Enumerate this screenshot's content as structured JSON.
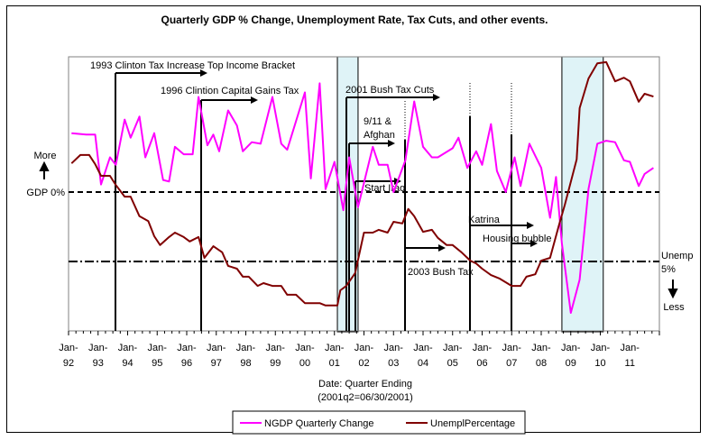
{
  "chart_data": {
    "type": "line",
    "title": "Quarterly GDP % Change, Unemployment Rate, Tax Cuts, and other events.",
    "xlabel": "Date: Quarter Ending",
    "xlabel_note": "(2001q2=06/30/2001)",
    "ylabel": "",
    "xlim": [
      1992,
      2012
    ],
    "gdp_ylim": [
      -9,
      9.2
    ],
    "unemp_ylim": [
      3.3,
      10.2
    ],
    "x_tick_labels": [
      [
        "Jan-",
        "92"
      ],
      [
        "Jan-",
        "93"
      ],
      [
        "Jan-",
        "94"
      ],
      [
        "Jan-",
        "95"
      ],
      [
        "Jan-",
        "96"
      ],
      [
        "Jan-",
        "97"
      ],
      [
        "Jan-",
        "98"
      ],
      [
        "Jan-",
        "99"
      ],
      [
        "Jan-",
        "00"
      ],
      [
        "Jan-",
        "01"
      ],
      [
        "Jan-",
        "02"
      ],
      [
        "Jan-",
        "03"
      ],
      [
        "Jan-",
        "04"
      ],
      [
        "Jan-",
        "05"
      ],
      [
        "Jan-",
        "06"
      ],
      [
        "Jan-",
        "07"
      ],
      [
        "Jan-",
        "08"
      ],
      [
        "Jan-",
        "09"
      ],
      [
        "Jan-",
        "10"
      ],
      [
        "Jan-",
        "11"
      ]
    ],
    "legend": {
      "placement": "bottom"
    },
    "series": [
      {
        "name": "NGDP Quarterly Change",
        "color": "#ff00ff",
        "axis": "gdp",
        "points": [
          [
            1992.1,
            3.9
          ],
          [
            1992.6,
            3.8
          ],
          [
            1992.9,
            3.8
          ],
          [
            1993.1,
            0.5
          ],
          [
            1993.4,
            2.3
          ],
          [
            1993.6,
            1.8
          ],
          [
            1993.9,
            4.8
          ],
          [
            1994.1,
            3.6
          ],
          [
            1994.4,
            5.0
          ],
          [
            1994.6,
            2.3
          ],
          [
            1994.9,
            3.9
          ],
          [
            1995.2,
            0.8
          ],
          [
            1995.4,
            0.7
          ],
          [
            1995.6,
            3.0
          ],
          [
            1995.9,
            2.5
          ],
          [
            1996.2,
            2.5
          ],
          [
            1996.4,
            6.3
          ],
          [
            1996.7,
            3.1
          ],
          [
            1996.9,
            3.8
          ],
          [
            1997.1,
            2.7
          ],
          [
            1997.4,
            5.4
          ],
          [
            1997.7,
            4.4
          ],
          [
            1997.9,
            2.7
          ],
          [
            1998.2,
            3.3
          ],
          [
            1998.5,
            3.2
          ],
          [
            1998.9,
            6.3
          ],
          [
            1999.2,
            3.2
          ],
          [
            1999.4,
            2.8
          ],
          [
            2000.0,
            6.6
          ],
          [
            2000.2,
            0.9
          ],
          [
            2000.5,
            7.2
          ],
          [
            2000.7,
            0.2
          ],
          [
            2001.0,
            2.0
          ],
          [
            2001.3,
            -1.2
          ],
          [
            2001.5,
            2.3
          ],
          [
            2001.8,
            -1.0
          ],
          [
            2002.3,
            3.0
          ],
          [
            2002.5,
            1.8
          ],
          [
            2002.8,
            1.8
          ],
          [
            2003.0,
            0.0
          ],
          [
            2003.4,
            2.1
          ],
          [
            2003.7,
            6.0
          ],
          [
            2004.0,
            3.0
          ],
          [
            2004.3,
            2.3
          ],
          [
            2004.5,
            2.3
          ],
          [
            2005.0,
            2.9
          ],
          [
            2005.2,
            3.6
          ],
          [
            2005.5,
            1.6
          ],
          [
            2005.8,
            2.7
          ],
          [
            2006.0,
            1.8
          ],
          [
            2006.3,
            4.5
          ],
          [
            2006.5,
            1.4
          ],
          [
            2006.8,
            0.0
          ],
          [
            2007.1,
            2.3
          ],
          [
            2007.3,
            0.4
          ],
          [
            2007.6,
            3.2
          ],
          [
            2007.8,
            2.4
          ],
          [
            2008.0,
            1.6
          ],
          [
            2008.3,
            -1.7
          ],
          [
            2008.5,
            1.0
          ],
          [
            2008.7,
            -3.4
          ],
          [
            2009.0,
            -8.0
          ],
          [
            2009.3,
            -5.8
          ],
          [
            2009.6,
            0.2
          ],
          [
            2009.9,
            3.2
          ],
          [
            2010.2,
            3.4
          ],
          [
            2010.5,
            3.3
          ],
          [
            2010.8,
            2.1
          ],
          [
            2011.0,
            2.0
          ],
          [
            2011.3,
            0.4
          ],
          [
            2011.5,
            1.2
          ],
          [
            2011.8,
            1.6
          ]
        ]
      },
      {
        "name": "UnemplPercentage",
        "color": "#800000",
        "axis": "unemp",
        "points": [
          [
            1992.1,
            7.45
          ],
          [
            1992.4,
            7.66
          ],
          [
            1992.7,
            7.66
          ],
          [
            1992.9,
            7.43
          ],
          [
            1993.1,
            7.14
          ],
          [
            1993.4,
            7.14
          ],
          [
            1993.6,
            6.91
          ],
          [
            1993.9,
            6.62
          ],
          [
            1994.1,
            6.62
          ],
          [
            1994.4,
            6.13
          ],
          [
            1994.7,
            6.01
          ],
          [
            1994.9,
            5.63
          ],
          [
            1995.1,
            5.41
          ],
          [
            1995.4,
            5.61
          ],
          [
            1995.6,
            5.72
          ],
          [
            1995.9,
            5.61
          ],
          [
            1996.1,
            5.5
          ],
          [
            1996.4,
            5.61
          ],
          [
            1996.6,
            5.09
          ],
          [
            1996.9,
            5.38
          ],
          [
            1997.2,
            5.23
          ],
          [
            1997.4,
            4.89
          ],
          [
            1997.7,
            4.82
          ],
          [
            1997.9,
            4.62
          ],
          [
            1998.1,
            4.62
          ],
          [
            1998.4,
            4.39
          ],
          [
            1998.6,
            4.46
          ],
          [
            1998.9,
            4.39
          ],
          [
            1999.2,
            4.39
          ],
          [
            1999.4,
            4.17
          ],
          [
            1999.7,
            4.17
          ],
          [
            2000.0,
            3.96
          ],
          [
            2000.5,
            3.96
          ],
          [
            2000.7,
            3.9
          ],
          [
            2001.1,
            3.9
          ],
          [
            2001.2,
            4.28
          ],
          [
            2001.4,
            4.39
          ],
          [
            2001.7,
            4.71
          ],
          [
            2002.0,
            5.72
          ],
          [
            2002.3,
            5.72
          ],
          [
            2002.5,
            5.79
          ],
          [
            2002.8,
            5.72
          ],
          [
            2003.0,
            5.99
          ],
          [
            2003.3,
            5.95
          ],
          [
            2003.5,
            6.31
          ],
          [
            2003.7,
            6.13
          ],
          [
            2004.0,
            5.74
          ],
          [
            2004.3,
            5.79
          ],
          [
            2004.5,
            5.59
          ],
          [
            2004.8,
            5.41
          ],
          [
            2005.0,
            5.41
          ],
          [
            2005.3,
            5.23
          ],
          [
            2005.6,
            5.02
          ],
          [
            2005.8,
            4.95
          ],
          [
            2006.0,
            4.82
          ],
          [
            2006.3,
            4.66
          ],
          [
            2006.6,
            4.57
          ],
          [
            2007.0,
            4.39
          ],
          [
            2007.3,
            4.39
          ],
          [
            2007.5,
            4.62
          ],
          [
            2007.8,
            4.68
          ],
          [
            2008.0,
            5.02
          ],
          [
            2008.3,
            5.09
          ],
          [
            2008.6,
            5.9
          ],
          [
            2008.8,
            6.42
          ],
          [
            2009.2,
            7.55
          ],
          [
            2009.3,
            8.83
          ],
          [
            2009.6,
            9.57
          ],
          [
            2009.9,
            9.95
          ],
          [
            2010.2,
            9.98
          ],
          [
            2010.5,
            9.5
          ],
          [
            2010.8,
            9.59
          ],
          [
            2011.0,
            9.5
          ],
          [
            2011.3,
            8.99
          ],
          [
            2011.5,
            9.19
          ],
          [
            2011.8,
            9.12
          ]
        ]
      }
    ],
    "reference_lines": [
      {
        "label": "GDP 0%",
        "axis": "gdp",
        "value": 0,
        "style": "dashed"
      },
      {
        "label_lines": [
          "Unemp",
          "5%"
        ],
        "axis": "unemp",
        "value": 5,
        "style": "dash-dot"
      }
    ],
    "direction_labels": {
      "more": "More",
      "less": "Less"
    },
    "shaded_periods": [
      [
        2001.1,
        2001.8
      ],
      [
        2008.7,
        2010.1
      ]
    ],
    "events": [
      {
        "label": "1993 Clinton Tax Increase Top Income Bracket",
        "year": 1993.6
      },
      {
        "label": "1996 Clintion Capital Gains Tax",
        "year": 1996.5
      },
      {
        "label": "2001 Bush Tax Cuts",
        "year": 2001.4
      },
      {
        "label_lines": [
          "9/11 &",
          "Afghan"
        ],
        "year": 2001.5
      },
      {
        "label": "Start Iraq",
        "year": 2001.7
      },
      {
        "label": "2003 Bush Tax",
        "year": 2003.4
      },
      {
        "label": "Katrina",
        "year": 2005.6
      },
      {
        "label": "Housing bubble",
        "year": 2007.0
      }
    ]
  }
}
